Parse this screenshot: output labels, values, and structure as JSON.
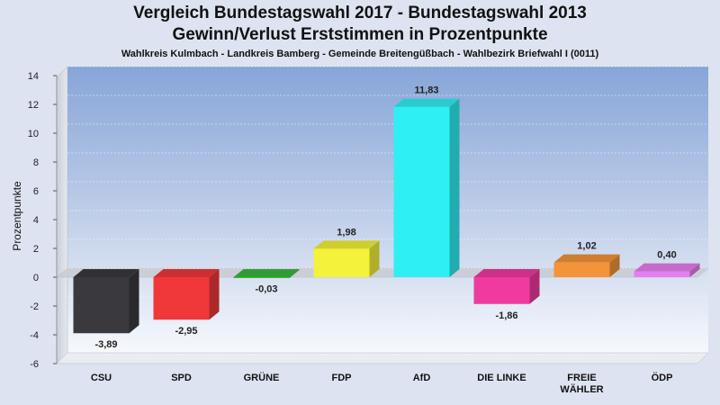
{
  "title": "Vergleich Bundestagswahl 2017 - Bundestagswahl 2013",
  "subtitle": "Gewinn/Verlust Erststimmen in Prozentpunkte",
  "caption": "Wahlkreis Kulmbach - Landkreis Bamberg - Gemeinde Breitengüßbach - Wahlbezirk Briefwahl I (0011)",
  "chart_data": {
    "type": "bar",
    "title": "Vergleich Bundestagswahl 2017 - Bundestagswahl 2013",
    "subtitle": "Gewinn/Verlust Erststimmen in Prozentpunkte",
    "ylabel": "Prozentpunkte",
    "xlabel": "",
    "ylim": [
      -6,
      14
    ],
    "yticks": [
      -6,
      -4,
      -2,
      0,
      2,
      4,
      6,
      8,
      10,
      12,
      14
    ],
    "grid": true,
    "categories": [
      "CSU",
      "SPD",
      "GRÜNE",
      "FDP",
      "AfD",
      "DIE LINKE",
      "FREIE WÄHLER",
      "ÖDP"
    ],
    "category_lines": [
      [
        "CSU"
      ],
      [
        "SPD"
      ],
      [
        "GRÜNE"
      ],
      [
        "FDP"
      ],
      [
        "AfD"
      ],
      [
        "DIE LINKE"
      ],
      [
        "FREIE",
        "WÄHLER"
      ],
      [
        "ÖDP"
      ]
    ],
    "values": [
      -3.89,
      -2.95,
      -0.03,
      1.98,
      11.83,
      -1.86,
      1.02,
      0.4
    ],
    "value_labels": [
      "-3,89",
      "-2,95",
      "-0,03",
      "1,98",
      "11,83",
      "-1,86",
      "1,02",
      "0,40"
    ],
    "colors": [
      "#3a3a3e",
      "#f0373a",
      "#3ab83e",
      "#f4f23a",
      "#2ef0f4",
      "#f03aa0",
      "#f39438",
      "#e67ef0"
    ]
  }
}
